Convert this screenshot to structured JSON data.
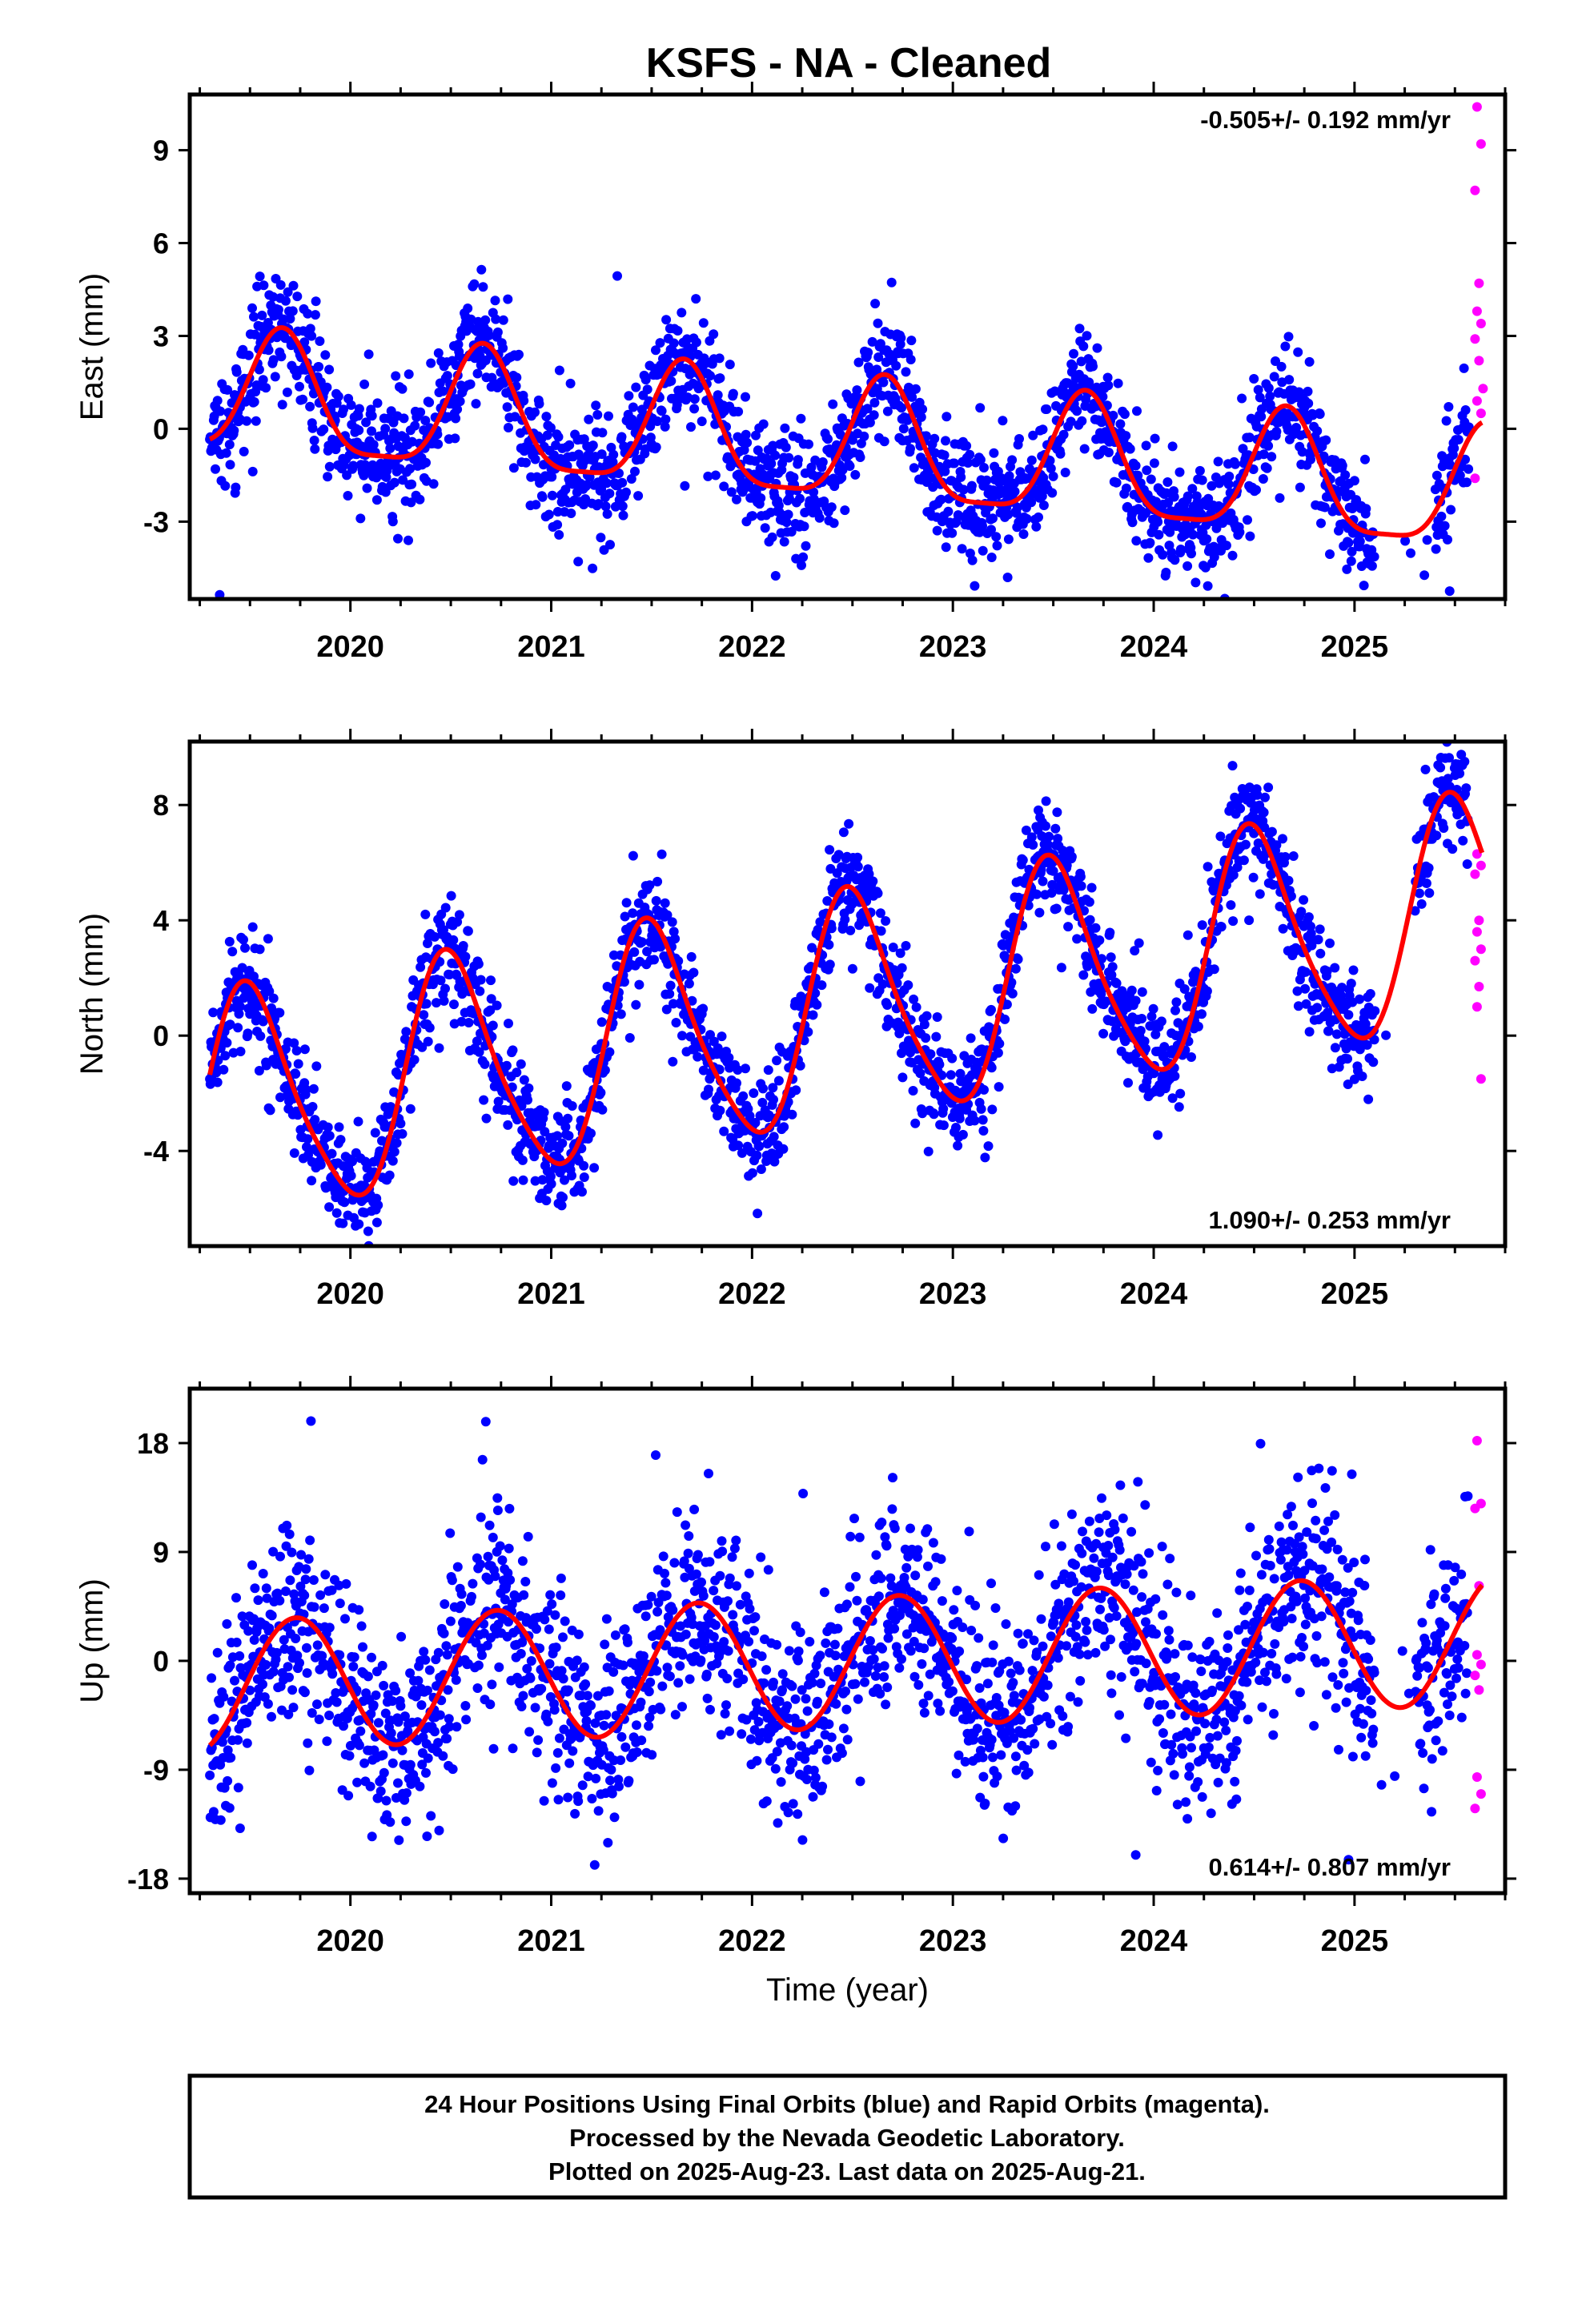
{
  "page_title": "KSFS  - NA - Cleaned",
  "footer": {
    "line1": "24 Hour Positions Using Final Orbits (blue) and Rapid Orbits (magenta).",
    "line2": "Processed by the Nevada Geodetic Laboratory.",
    "line3": "Plotted on 2025-Aug-23. Last data on 2025-Aug-21."
  },
  "colors": {
    "final_orbits": "#0000ff",
    "rapid_orbits": "#ff00ff",
    "model_fit": "#ff0000",
    "axes": "#000000"
  },
  "chart_data": [
    {
      "type": "scatter",
      "ylabel": "East (mm)",
      "xlabel": "",
      "x_unit": "decimal year",
      "xlim": [
        2019.2,
        2025.75
      ],
      "ylim": [
        -5.5,
        10.8
      ],
      "x_ticks": [
        "2020",
        "2021",
        "2022",
        "2023",
        "2024",
        "2025"
      ],
      "y_ticks": [
        "-3",
        "0",
        "3",
        "6",
        "9"
      ],
      "rate_annotation": "-0.505+/- 0.192 mm/yr",
      "rate_position": "top-right",
      "model": {
        "offset": 1.0,
        "rate": -0.505,
        "annual_amp": 1.95,
        "annual_peak": 0.66,
        "semiannual_amp": 0.5,
        "semiannual_peak": 0.66,
        "final_end": 2025.57,
        "last_data": 2025.64
      },
      "final_orbits_scatter_sd": 0.95,
      "gaps": [
        [
          2025.1,
          2025.4
        ]
      ],
      "rapid_orbits": [
        {
          "x": 2025.61,
          "y": 10.4
        },
        {
          "x": 2025.63,
          "y": 9.2
        },
        {
          "x": 2025.6,
          "y": 7.7
        },
        {
          "x": 2025.62,
          "y": 4.7
        },
        {
          "x": 2025.61,
          "y": 3.8
        },
        {
          "x": 2025.63,
          "y": 3.4
        },
        {
          "x": 2025.6,
          "y": 2.9
        },
        {
          "x": 2025.62,
          "y": 2.2
        },
        {
          "x": 2025.64,
          "y": 1.3
        },
        {
          "x": 2025.61,
          "y": 0.9
        },
        {
          "x": 2025.63,
          "y": 0.5
        },
        {
          "x": 2025.6,
          "y": -1.6
        }
      ]
    },
    {
      "type": "scatter",
      "ylabel": "North (mm)",
      "xlabel": "",
      "x_unit": "decimal year",
      "xlim": [
        2019.2,
        2025.75
      ],
      "ylim": [
        -7.3,
        10.2
      ],
      "x_ticks": [
        "2020",
        "2021",
        "2022",
        "2023",
        "2024",
        "2025"
      ],
      "y_ticks": [
        "-4",
        "0",
        "4",
        "8"
      ],
      "rate_annotation": "1.090+/- 0.253 mm/yr",
      "rate_position": "bottom-right",
      "model": {
        "offset": -2.6,
        "rate": 1.09,
        "annual_amp": 3.9,
        "annual_peak": 0.5,
        "semiannual_amp": 0.6,
        "semiannual_peak": 0.92,
        "final_end": 2025.57,
        "last_data": 2025.64
      },
      "final_orbits_scatter_sd": 0.95,
      "gaps": [
        [
          2025.1,
          2025.3
        ]
      ],
      "rapid_orbits": [
        {
          "x": 2025.61,
          "y": 6.3
        },
        {
          "x": 2025.63,
          "y": 5.9
        },
        {
          "x": 2025.6,
          "y": 5.6
        },
        {
          "x": 2025.62,
          "y": 4.0
        },
        {
          "x": 2025.61,
          "y": 3.6
        },
        {
          "x": 2025.63,
          "y": 3.0
        },
        {
          "x": 2025.6,
          "y": 2.6
        },
        {
          "x": 2025.62,
          "y": 1.7
        },
        {
          "x": 2025.61,
          "y": 1.0
        },
        {
          "x": 2025.63,
          "y": -1.5
        }
      ]
    },
    {
      "type": "scatter",
      "ylabel": "Up (mm)",
      "xlabel": "Time (year)",
      "x_unit": "decimal year",
      "xlim": [
        2019.2,
        2025.75
      ],
      "ylim": [
        -19.2,
        22.5
      ],
      "x_ticks": [
        "2020",
        "2021",
        "2022",
        "2023",
        "2024",
        "2025"
      ],
      "y_ticks": [
        "-18",
        "-9",
        "0",
        "9",
        "18"
      ],
      "rate_annotation": "0.614+/- 0.807 mm/yr",
      "rate_position": "bottom-right",
      "model": {
        "offset": -2.1,
        "rate": 0.614,
        "annual_amp": 5.4,
        "annual_peak": 0.73,
        "semiannual_amp": 0.0,
        "semiannual_peak": 0.0,
        "final_end": 2025.57,
        "last_data": 2025.64
      },
      "final_orbits_scatter_sd": 4.0,
      "gaps": [
        [
          2025.1,
          2025.3
        ]
      ],
      "rapid_orbits": [
        {
          "x": 2025.61,
          "y": 18.2
        },
        {
          "x": 2025.63,
          "y": 13.0
        },
        {
          "x": 2025.6,
          "y": 12.6
        },
        {
          "x": 2025.62,
          "y": 6.2
        },
        {
          "x": 2025.61,
          "y": 0.5
        },
        {
          "x": 2025.63,
          "y": -0.3
        },
        {
          "x": 2025.6,
          "y": -1.2
        },
        {
          "x": 2025.62,
          "y": -2.4
        },
        {
          "x": 2025.61,
          "y": -9.6
        },
        {
          "x": 2025.63,
          "y": -11.0
        },
        {
          "x": 2025.6,
          "y": -12.2
        }
      ]
    }
  ]
}
